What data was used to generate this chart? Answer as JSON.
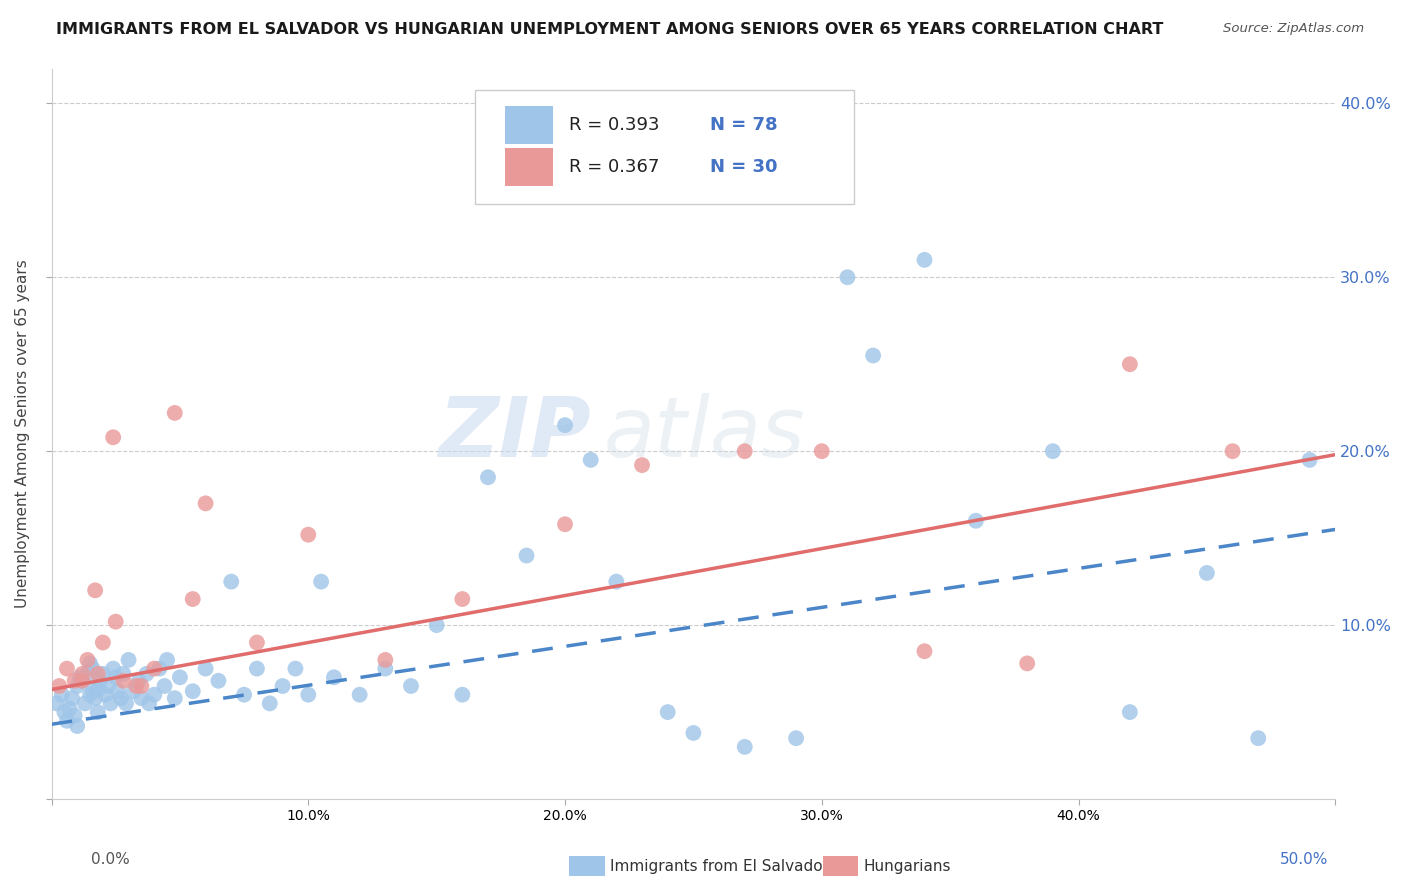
{
  "title": "IMMIGRANTS FROM EL SALVADOR VS HUNGARIAN UNEMPLOYMENT AMONG SENIORS OVER 65 YEARS CORRELATION CHART",
  "source": "Source: ZipAtlas.com",
  "ylabel": "Unemployment Among Seniors over 65 years",
  "xlim": [
    0.0,
    0.5
  ],
  "ylim": [
    0.0,
    0.42
  ],
  "xticks": [
    0.0,
    0.1,
    0.2,
    0.3,
    0.4,
    0.5
  ],
  "xticklabels_inner": [
    "",
    "",
    "20.0%",
    "30.0%",
    "40.0%",
    ""
  ],
  "xleft_label": "0.0%",
  "xright_label": "50.0%",
  "yticks_right": [
    0.1,
    0.2,
    0.3,
    0.4
  ],
  "yticklabels_right": [
    "10.0%",
    "20.0%",
    "30.0%",
    "40.0%"
  ],
  "legend_label1": "Immigrants from El Salvador",
  "legend_label2": "Hungarians",
  "R1": "0.393",
  "N1": "78",
  "R2": "0.367",
  "N2": "30",
  "color_blue": "#9fc5e8",
  "color_pink": "#ea9999",
  "color_blue_line": "#4a86c8",
  "color_pink_line": "#e06c6c",
  "color_text_blue": "#4472c4",
  "watermark_zip": "ZIP",
  "watermark_atlas": "atlas",
  "blue_scatter_x": [
    0.002,
    0.004,
    0.005,
    0.006,
    0.007,
    0.008,
    0.009,
    0.01,
    0.01,
    0.011,
    0.012,
    0.013,
    0.014,
    0.015,
    0.015,
    0.016,
    0.016,
    0.017,
    0.018,
    0.018,
    0.019,
    0.02,
    0.021,
    0.022,
    0.023,
    0.024,
    0.025,
    0.026,
    0.027,
    0.028,
    0.029,
    0.03,
    0.032,
    0.034,
    0.035,
    0.037,
    0.038,
    0.04,
    0.042,
    0.044,
    0.045,
    0.048,
    0.05,
    0.055,
    0.06,
    0.065,
    0.07,
    0.075,
    0.08,
    0.085,
    0.09,
    0.095,
    0.1,
    0.105,
    0.11,
    0.12,
    0.13,
    0.14,
    0.15,
    0.16,
    0.17,
    0.185,
    0.2,
    0.21,
    0.22,
    0.24,
    0.25,
    0.27,
    0.29,
    0.31,
    0.32,
    0.34,
    0.36,
    0.39,
    0.42,
    0.45,
    0.47,
    0.49
  ],
  "blue_scatter_y": [
    0.055,
    0.06,
    0.05,
    0.045,
    0.052,
    0.058,
    0.048,
    0.065,
    0.042,
    0.07,
    0.068,
    0.055,
    0.072,
    0.078,
    0.06,
    0.062,
    0.075,
    0.058,
    0.063,
    0.05,
    0.068,
    0.072,
    0.06,
    0.065,
    0.055,
    0.075,
    0.07,
    0.062,
    0.058,
    0.072,
    0.055,
    0.08,
    0.062,
    0.068,
    0.058,
    0.072,
    0.055,
    0.06,
    0.075,
    0.065,
    0.08,
    0.058,
    0.07,
    0.062,
    0.075,
    0.068,
    0.125,
    0.06,
    0.075,
    0.055,
    0.065,
    0.075,
    0.06,
    0.125,
    0.07,
    0.06,
    0.075,
    0.065,
    0.1,
    0.06,
    0.185,
    0.14,
    0.215,
    0.195,
    0.125,
    0.05,
    0.038,
    0.03,
    0.035,
    0.3,
    0.255,
    0.31,
    0.16,
    0.2,
    0.05,
    0.13,
    0.035,
    0.195
  ],
  "pink_scatter_x": [
    0.003,
    0.006,
    0.009,
    0.012,
    0.014,
    0.017,
    0.02,
    0.024,
    0.028,
    0.033,
    0.04,
    0.048,
    0.06,
    0.08,
    0.1,
    0.13,
    0.16,
    0.2,
    0.23,
    0.27,
    0.3,
    0.34,
    0.38,
    0.42,
    0.46,
    0.012,
    0.018,
    0.025,
    0.035,
    0.055
  ],
  "pink_scatter_y": [
    0.065,
    0.075,
    0.068,
    0.072,
    0.08,
    0.12,
    0.09,
    0.208,
    0.068,
    0.065,
    0.075,
    0.222,
    0.17,
    0.09,
    0.152,
    0.08,
    0.115,
    0.158,
    0.192,
    0.2,
    0.2,
    0.085,
    0.078,
    0.25,
    0.2,
    0.068,
    0.072,
    0.102,
    0.065,
    0.115
  ],
  "blue_line_x": [
    0.0,
    0.5
  ],
  "blue_line_y": [
    0.043,
    0.155
  ],
  "pink_line_x": [
    0.0,
    0.5
  ],
  "pink_line_y": [
    0.063,
    0.198
  ]
}
